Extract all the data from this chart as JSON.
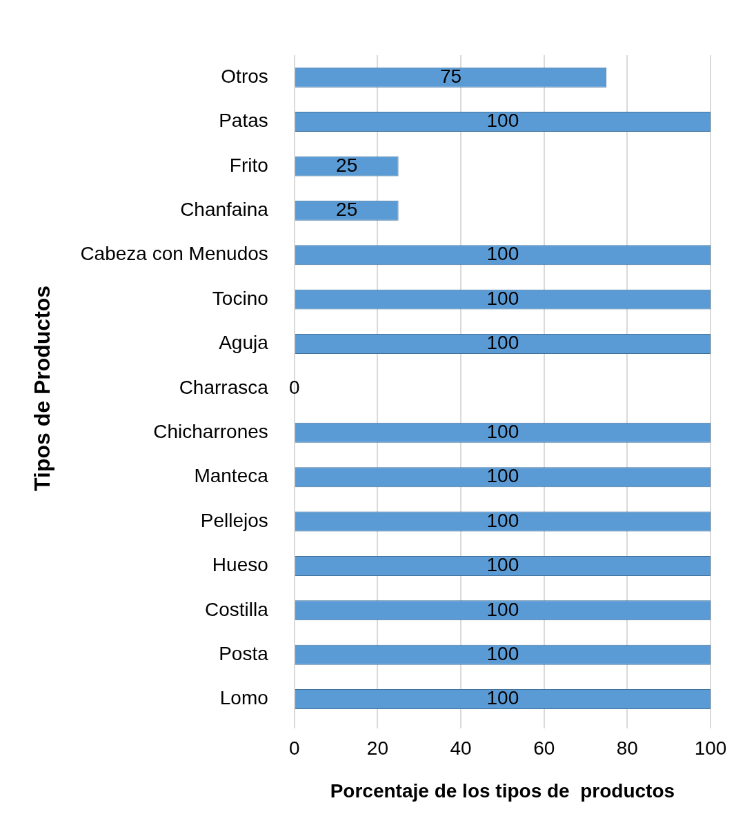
{
  "chart_data": {
    "type": "bar",
    "orientation": "horizontal",
    "xlabel": "Porcentaje de los tipos de  productos",
    "ylabel": "Tipos de Productos",
    "categories": [
      "Otros",
      "Patas",
      "Frito",
      "Chanfaina",
      "Cabeza con Menudos",
      "Tocino",
      "Aguja",
      "Charrasca",
      "Chicharrones",
      "Manteca",
      "Pellejos",
      "Hueso",
      "Costilla",
      "Posta",
      "Lomo"
    ],
    "values": [
      75,
      100,
      25,
      25,
      100,
      100,
      100,
      0,
      100,
      100,
      100,
      100,
      100,
      100,
      100
    ],
    "color": "#5b9bd5",
    "xlim": [
      0,
      100
    ],
    "xticks": [
      0,
      20,
      40,
      60,
      80,
      100
    ],
    "grid": "x",
    "data_labels": true,
    "legend": false
  }
}
